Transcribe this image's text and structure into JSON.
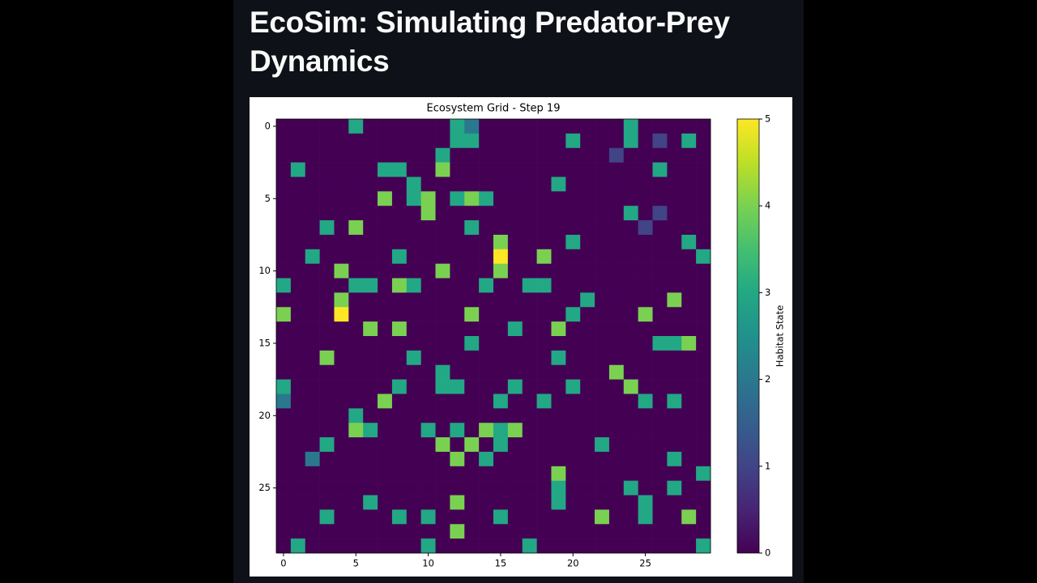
{
  "header": {
    "title": "EcoSim: Simulating Predator-Prey Dynamics"
  },
  "chart_data": {
    "type": "heatmap",
    "title": "Ecosystem Grid - Step 19",
    "colormap": "viridis",
    "colorbar_label": "Habitat State",
    "clim": [
      0,
      5
    ],
    "cticks": [
      0,
      1,
      2,
      3,
      4,
      5
    ],
    "xlim": [
      -0.5,
      29.5
    ],
    "ylim": [
      29.5,
      -0.5
    ],
    "xticks": [
      0,
      5,
      10,
      15,
      20,
      25
    ],
    "yticks": [
      0,
      5,
      10,
      15,
      20,
      25
    ],
    "z": [
      [
        0,
        0,
        0,
        0,
        0,
        3,
        0,
        0,
        0,
        0,
        0,
        0,
        3,
        2,
        0,
        0,
        0,
        0,
        0,
        0,
        0,
        0,
        0,
        0,
        3,
        0,
        0,
        0,
        0,
        0
      ],
      [
        0,
        0,
        0,
        0,
        0,
        0,
        0,
        0,
        0,
        0,
        0,
        0,
        3,
        3,
        0,
        0,
        0,
        0,
        0,
        0,
        3,
        0,
        0,
        0,
        3,
        0,
        1,
        0,
        3,
        0
      ],
      [
        0,
        0,
        0,
        0,
        0,
        0,
        0,
        0,
        0,
        0,
        0,
        3,
        0,
        0,
        0,
        0,
        0,
        0,
        0,
        0,
        0,
        0,
        0,
        1,
        0,
        0,
        0,
        0,
        0,
        0
      ],
      [
        0,
        3,
        0,
        0,
        0,
        0,
        0,
        3,
        3,
        0,
        0,
        4,
        0,
        0,
        0,
        0,
        0,
        0,
        0,
        0,
        0,
        0,
        0,
        0,
        0,
        0,
        3,
        0,
        0,
        0
      ],
      [
        0,
        0,
        0,
        0,
        0,
        0,
        0,
        0,
        0,
        3,
        0,
        0,
        0,
        0,
        0,
        0,
        0,
        0,
        0,
        3,
        0,
        0,
        0,
        0,
        0,
        0,
        0,
        0,
        0,
        0
      ],
      [
        0,
        0,
        0,
        0,
        0,
        0,
        0,
        4,
        0,
        3,
        4,
        0,
        3,
        4,
        3,
        0,
        0,
        0,
        0,
        0,
        0,
        0,
        0,
        0,
        0,
        0,
        0,
        0,
        0,
        0
      ],
      [
        0,
        0,
        0,
        0,
        0,
        0,
        0,
        0,
        0,
        0,
        4,
        0,
        0,
        0,
        0,
        0,
        0,
        0,
        0,
        0,
        0,
        0,
        0,
        0,
        3,
        0,
        1,
        0,
        0,
        0
      ],
      [
        0,
        0,
        0,
        3,
        0,
        4,
        0,
        0,
        0,
        0,
        0,
        0,
        0,
        3,
        0,
        0,
        0,
        0,
        0,
        0,
        0,
        0,
        0,
        0,
        0,
        1,
        0,
        0,
        0,
        0
      ],
      [
        0,
        0,
        0,
        0,
        0,
        0,
        0,
        0,
        0,
        0,
        0,
        0,
        0,
        0,
        0,
        4,
        0,
        0,
        0,
        0,
        3,
        0,
        0,
        0,
        0,
        0,
        0,
        0,
        3,
        0
      ],
      [
        0,
        0,
        3,
        0,
        0,
        0,
        0,
        0,
        3,
        0,
        0,
        0,
        0,
        0,
        0,
        5,
        0,
        0,
        4,
        0,
        0,
        0,
        0,
        0,
        0,
        0,
        0,
        0,
        0,
        3
      ],
      [
        0,
        0,
        0,
        0,
        4,
        0,
        0,
        0,
        0,
        0,
        0,
        4,
        0,
        0,
        0,
        4,
        0,
        0,
        0,
        0,
        0,
        0,
        0,
        0,
        0,
        0,
        0,
        0,
        0,
        0
      ],
      [
        3,
        0,
        0,
        0,
        0,
        3,
        3,
        0,
        4,
        3,
        0,
        0,
        0,
        0,
        3,
        0,
        0,
        3,
        3,
        0,
        0,
        0,
        0,
        0,
        0,
        0,
        0,
        0,
        0,
        0
      ],
      [
        0,
        0,
        0,
        0,
        4,
        0,
        0,
        0,
        0,
        0,
        0,
        0,
        0,
        0,
        0,
        0,
        0,
        0,
        0,
        0,
        0,
        3,
        0,
        0,
        0,
        0,
        0,
        4,
        0,
        0
      ],
      [
        4,
        0,
        0,
        0,
        5,
        0,
        0,
        0,
        0,
        0,
        0,
        0,
        0,
        4,
        0,
        0,
        0,
        0,
        0,
        0,
        3,
        0,
        0,
        0,
        0,
        4,
        0,
        0,
        0,
        0
      ],
      [
        0,
        0,
        0,
        0,
        0,
        0,
        4,
        0,
        4,
        0,
        0,
        0,
        0,
        0,
        0,
        0,
        3,
        0,
        0,
        4,
        0,
        0,
        0,
        0,
        0,
        0,
        0,
        0,
        0,
        0
      ],
      [
        0,
        0,
        0,
        0,
        0,
        0,
        0,
        0,
        0,
        0,
        0,
        0,
        0,
        3,
        0,
        0,
        0,
        0,
        0,
        0,
        0,
        0,
        0,
        0,
        0,
        0,
        3,
        3,
        4,
        0
      ],
      [
        0,
        0,
        0,
        4,
        0,
        0,
        0,
        0,
        0,
        3,
        0,
        0,
        0,
        0,
        0,
        0,
        0,
        0,
        0,
        3,
        0,
        0,
        0,
        0,
        0,
        0,
        0,
        0,
        0,
        0
      ],
      [
        0,
        0,
        0,
        0,
        0,
        0,
        0,
        0,
        0,
        0,
        0,
        3,
        0,
        0,
        0,
        0,
        0,
        0,
        0,
        0,
        0,
        0,
        0,
        4,
        0,
        0,
        0,
        0,
        0,
        0
      ],
      [
        3,
        0,
        0,
        0,
        0,
        0,
        0,
        0,
        3,
        0,
        0,
        3,
        3,
        0,
        0,
        0,
        3,
        0,
        0,
        0,
        3,
        0,
        0,
        0,
        4,
        0,
        0,
        0,
        0,
        0
      ],
      [
        2,
        0,
        0,
        0,
        0,
        0,
        0,
        4,
        0,
        0,
        0,
        0,
        0,
        0,
        0,
        3,
        0,
        0,
        3,
        0,
        0,
        0,
        0,
        0,
        0,
        3,
        0,
        3,
        0,
        0
      ],
      [
        0,
        0,
        0,
        0,
        0,
        3,
        0,
        0,
        0,
        0,
        0,
        0,
        0,
        0,
        0,
        0,
        0,
        0,
        0,
        0,
        0,
        0,
        0,
        0,
        0,
        0,
        0,
        0,
        0,
        0
      ],
      [
        0,
        0,
        0,
        0,
        0,
        4,
        3,
        0,
        0,
        0,
        3,
        0,
        3,
        0,
        4,
        3,
        4,
        0,
        0,
        0,
        0,
        0,
        0,
        0,
        0,
        0,
        0,
        0,
        0,
        0
      ],
      [
        0,
        0,
        0,
        3,
        0,
        0,
        0,
        0,
        0,
        0,
        0,
        4,
        0,
        4,
        0,
        3,
        0,
        0,
        0,
        0,
        0,
        0,
        3,
        0,
        0,
        0,
        0,
        0,
        0,
        0
      ],
      [
        0,
        0,
        2,
        0,
        0,
        0,
        0,
        0,
        0,
        0,
        0,
        0,
        4,
        0,
        3,
        0,
        0,
        0,
        0,
        0,
        0,
        0,
        0,
        0,
        0,
        0,
        0,
        3,
        0,
        0
      ],
      [
        0,
        0,
        0,
        0,
        0,
        0,
        0,
        0,
        0,
        0,
        0,
        0,
        0,
        0,
        0,
        0,
        0,
        0,
        0,
        4,
        0,
        0,
        0,
        0,
        0,
        0,
        0,
        0,
        0,
        3
      ],
      [
        0,
        0,
        0,
        0,
        0,
        0,
        0,
        0,
        0,
        0,
        0,
        0,
        0,
        0,
        0,
        0,
        0,
        0,
        0,
        3,
        0,
        0,
        0,
        0,
        3,
        0,
        0,
        3,
        0,
        0
      ],
      [
        0,
        0,
        0,
        0,
        0,
        0,
        3,
        0,
        0,
        0,
        0,
        0,
        4,
        0,
        0,
        0,
        0,
        0,
        0,
        3,
        0,
        0,
        0,
        0,
        0,
        3,
        0,
        0,
        0,
        0
      ],
      [
        0,
        0,
        0,
        3,
        0,
        0,
        0,
        0,
        3,
        0,
        3,
        0,
        0,
        0,
        0,
        3,
        0,
        0,
        0,
        0,
        0,
        0,
        4,
        0,
        0,
        3,
        0,
        0,
        4,
        0
      ],
      [
        0,
        0,
        0,
        0,
        0,
        0,
        0,
        0,
        0,
        0,
        0,
        0,
        4,
        0,
        0,
        0,
        0,
        0,
        0,
        0,
        0,
        0,
        0,
        0,
        0,
        0,
        0,
        0,
        0,
        0
      ],
      [
        0,
        3,
        0,
        0,
        0,
        0,
        0,
        0,
        0,
        0,
        3,
        0,
        0,
        0,
        0,
        0,
        0,
        3,
        0,
        0,
        0,
        0,
        0,
        0,
        0,
        0,
        0,
        0,
        0,
        3
      ]
    ]
  }
}
